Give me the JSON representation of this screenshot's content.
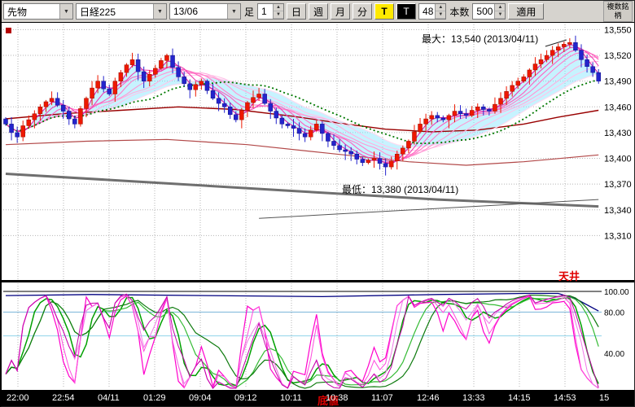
{
  "toolbar": {
    "instrument_select": {
      "value": "先物"
    },
    "symbol_select": {
      "value": "日経225"
    },
    "contract_select": {
      "value": "13/06"
    },
    "bar_label": "足",
    "bar_value": "1",
    "period_buttons": [
      "日",
      "週",
      "月",
      "分"
    ],
    "tick_button": "T",
    "tick_button2": "T",
    "interval_value": "48",
    "count_label": "本数",
    "count_value": "500",
    "apply_button": "適用",
    "corner_tab": "複数銘柄"
  },
  "annotations": {
    "max_label": "最大：13,540 (2013/04/11)",
    "min_label": "最低：13,380 (2013/04/11)",
    "ceiling_label": "天井",
    "bottom_label": "底値"
  },
  "chart_data": {
    "type": "candlestick",
    "symbol": "日経225 先物 13/06 分足",
    "up_color": "#ee1800",
    "down_color": "#2424cc",
    "price_axis": {
      "ticks": [
        {
          "label": "13,550",
          "value": 13550
        },
        {
          "label": "13,520",
          "value": 13520
        },
        {
          "label": "13,490",
          "value": 13490
        },
        {
          "label": "13,460",
          "value": 13460
        },
        {
          "label": "13,430",
          "value": 13430
        },
        {
          "label": "13,400",
          "value": 13400
        },
        {
          "label": "13,370",
          "value": 13370
        },
        {
          "label": "13,340",
          "value": 13340
        },
        {
          "label": "13,310",
          "value": 13310
        }
      ]
    },
    "x_axis": {
      "labels": [
        "22:00",
        "22:54",
        "04/11",
        "01:29",
        "09:04",
        "09:12",
        "10:11",
        "10:38",
        "11:07",
        "12:46",
        "13:33",
        "14:15",
        "14:53",
        "15"
      ]
    },
    "candles": {
      "open_rule": "prev_close",
      "closes": [
        13440,
        13430,
        13425,
        13438,
        13445,
        13452,
        13460,
        13466,
        13470,
        13462,
        13455,
        13446,
        13440,
        13458,
        13470,
        13482,
        13490,
        13481,
        13475,
        13490,
        13500,
        13509,
        13515,
        13501,
        13490,
        13498,
        13505,
        13514,
        13520,
        13506,
        13495,
        13487,
        13480,
        13486,
        13490,
        13479,
        13470,
        13464,
        13460,
        13451,
        13445,
        13456,
        13465,
        13471,
        13475,
        13464,
        13455,
        13447,
        13440,
        13438,
        13435,
        13429,
        13425,
        13433,
        13440,
        13429,
        13420,
        13415,
        13410,
        13408,
        13405,
        13399,
        13395,
        13398,
        13400,
        13394,
        13390,
        13397,
        13405,
        13412,
        13420,
        13431,
        13440,
        13446,
        13450,
        13447,
        13445,
        13450,
        13455,
        13452,
        13450,
        13456,
        13460,
        13457,
        13455,
        13463,
        13470,
        13478,
        13485,
        13490,
        13495,
        13503,
        13510,
        13515,
        13520,
        13526,
        13530,
        13533,
        13535,
        13526,
        13515,
        13507,
        13500,
        13490
      ],
      "high_override": {
        "98": 13540
      },
      "low_override": {
        "66": 13380
      }
    },
    "overlays": {
      "ribbon": {
        "periods": [
          22,
          18,
          15,
          12,
          9,
          7,
          5,
          3
        ],
        "colors": [
          "#ffd9f0",
          "#ffc4e9",
          "#ffaede",
          "#ff97d3",
          "#ff7cc8",
          "#ff5fbe",
          "#ef41b2",
          "#dd1fa6"
        ]
      },
      "green_ma": {
        "period": 26,
        "color": "#007800"
      },
      "band": {
        "fast": 3,
        "slow": 22,
        "color": "rgba(130,228,255,0.45)"
      },
      "lines": [
        {
          "name": "ma-slow-1",
          "color": "#990000",
          "width": 1.4,
          "points": [
            [
              0,
              13446
            ],
            [
              10,
              13452
            ],
            [
              20,
              13456
            ],
            [
              30,
              13460
            ],
            [
              40,
              13457
            ],
            [
              50,
              13449
            ],
            [
              58,
              13441
            ],
            [
              66,
              13434
            ],
            [
              74,
              13431
            ],
            [
              82,
              13433
            ],
            [
              90,
              13440
            ],
            [
              96,
              13448
            ],
            [
              103,
              13456
            ]
          ]
        },
        {
          "name": "ma-slow-2",
          "color": "#b24848",
          "width": 1.2,
          "points": [
            [
              0,
              13416
            ],
            [
              14,
              13420
            ],
            [
              28,
              13422
            ],
            [
              42,
              13416
            ],
            [
              56,
              13406
            ],
            [
              70,
              13396
            ],
            [
              80,
              13392
            ],
            [
              90,
              13396
            ],
            [
              103,
              13404
            ]
          ]
        },
        {
          "name": "ma-very-slow",
          "color": "#6f6f6f",
          "width": 3,
          "points": [
            [
              0,
              13382
            ],
            [
              25,
              13372
            ],
            [
              50,
              13362
            ],
            [
              75,
              13352
            ],
            [
              103,
              13344
            ]
          ]
        },
        {
          "name": "trendline",
          "color": "#555555",
          "width": 1,
          "points": [
            [
              44,
              13330
            ],
            [
              103,
              13352
            ]
          ]
        }
      ]
    },
    "oscillator": {
      "ticks": [
        {
          "label": "100.00",
          "value": 100
        },
        {
          "label": "80.00",
          "value": 80
        },
        {
          "label": "40.00",
          "value": 40
        }
      ],
      "fast": [
        {
          "period": 5,
          "color": "#ff00cc",
          "width": 1.2
        },
        {
          "period": 7,
          "color": "#ff4add",
          "width": 1
        },
        {
          "period": 10,
          "color": "#f07ae8",
          "width": 1
        },
        {
          "period": 13,
          "color": "#c400a8",
          "width": 1
        }
      ],
      "smooth": [
        {
          "period": 9,
          "avg": 3,
          "color": "#00a000",
          "width": 1.5
        },
        {
          "period": 14,
          "avg": 5,
          "color": "#35bb35",
          "width": 1.2
        },
        {
          "period": 25,
          "avg": 5,
          "color": "#0d7a0d",
          "width": 1.2
        }
      ],
      "navy": {
        "color": "#000080",
        "width": 1.3,
        "points": [
          [
            0,
            96
          ],
          [
            15,
            97
          ],
          [
            35,
            96
          ],
          [
            55,
            95
          ],
          [
            75,
            97
          ],
          [
            90,
            98
          ],
          [
            96,
            98
          ],
          [
            99,
            93
          ],
          [
            103,
            81
          ]
        ]
      },
      "guides": [
        {
          "value": 80,
          "color": "#78b4da"
        },
        {
          "value": 57,
          "color": "#8fd2ea"
        }
      ]
    }
  }
}
